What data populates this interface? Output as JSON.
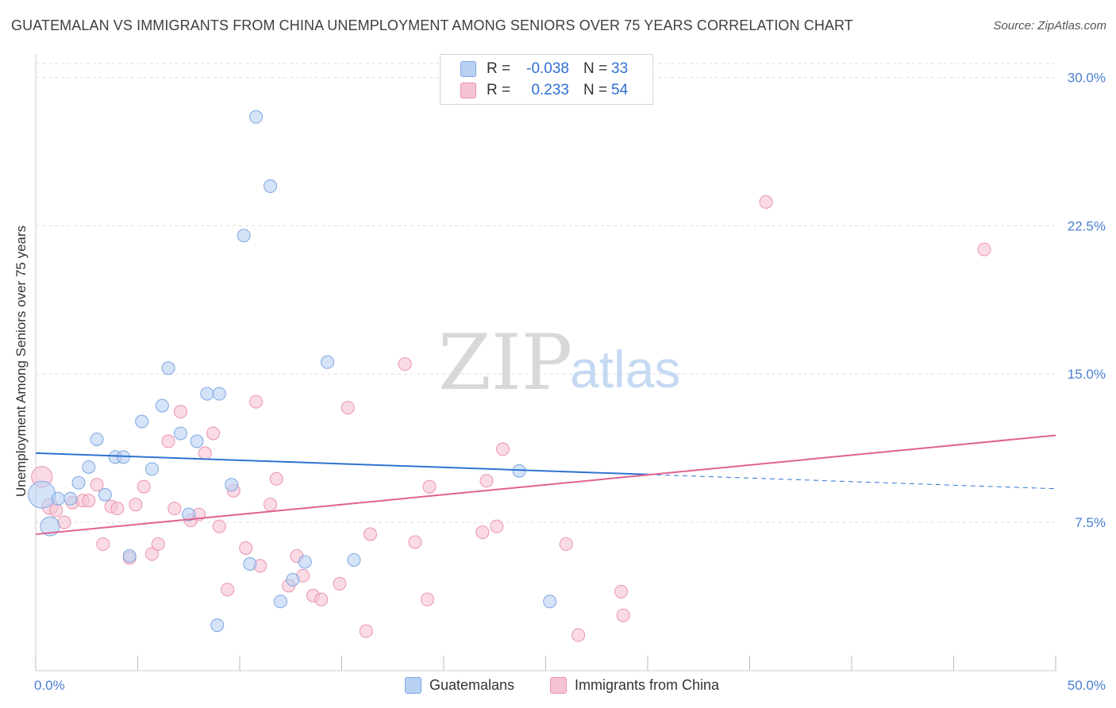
{
  "title": "GUATEMALAN VS IMMIGRANTS FROM CHINA UNEMPLOYMENT AMONG SENIORS OVER 75 YEARS CORRELATION CHART",
  "source": "Source: ZipAtlas.com",
  "watermark": {
    "zip": "ZIP",
    "atlas": "atlas"
  },
  "colors": {
    "blue_fill": "#b8d1f3",
    "blue_stroke": "#7ea6e0",
    "blue_line": "#2f73d0",
    "pink_fill": "#f6c3d3",
    "pink_stroke": "#ea93b0",
    "pink_line": "#e0628f",
    "tick_text": "#4a7fd0",
    "grid": "#dddddd"
  },
  "stats": [
    {
      "r_label": "R =",
      "r_value": "-0.038",
      "n_label": "N =",
      "n_value": "33",
      "color": "#b8d1f3",
      "border": "#7ea6e0"
    },
    {
      "r_label": "R =",
      "r_value": "0.233",
      "n_label": "N =",
      "n_value": "54",
      "color": "#f6c3d3",
      "border": "#ea93b0"
    }
  ],
  "legend": [
    {
      "label": "Guatemalans",
      "color": "#b8d1f3",
      "border": "#7ea6e0"
    },
    {
      "label": "Immigrants from China",
      "color": "#f6c3d3",
      "border": "#ea93b0"
    }
  ],
  "chart_data": {
    "type": "scatter",
    "title": "GUATEMALAN VS IMMIGRANTS FROM CHINA UNEMPLOYMENT AMONG SENIORS OVER 75 YEARS CORRELATION CHART",
    "xlabel": "",
    "ylabel": "Unemployment Among Seniors over 75 years",
    "xlim": [
      0,
      50
    ],
    "ylim": [
      0,
      30.7
    ],
    "x_tick_labels": [
      {
        "value": 0,
        "label": "0.0%"
      },
      {
        "value": 50,
        "label": "50.0%"
      }
    ],
    "y_tick_labels": [
      {
        "value": 7.5,
        "label": "7.5%"
      },
      {
        "value": 15.0,
        "label": "15.0%"
      },
      {
        "value": 22.5,
        "label": "22.5%"
      },
      {
        "value": 30.0,
        "label": "30.0%"
      }
    ],
    "grid": true,
    "series": [
      {
        "name": "Guatemalans",
        "points": [
          {
            "x": 0.3,
            "y": 8.9,
            "size": 17
          },
          {
            "x": 0.7,
            "y": 7.3,
            "size": 12
          },
          {
            "x": 1.1,
            "y": 8.7,
            "size": 8
          },
          {
            "x": 1.7,
            "y": 8.7,
            "size": 8
          },
          {
            "x": 2.1,
            "y": 9.5,
            "size": 8
          },
          {
            "x": 2.6,
            "y": 10.3,
            "size": 8
          },
          {
            "x": 3.0,
            "y": 11.7,
            "size": 8
          },
          {
            "x": 3.4,
            "y": 8.9,
            "size": 8
          },
          {
            "x": 3.9,
            "y": 10.8,
            "size": 8
          },
          {
            "x": 4.3,
            "y": 10.8,
            "size": 8
          },
          {
            "x": 4.6,
            "y": 5.8,
            "size": 8
          },
          {
            "x": 5.2,
            "y": 12.6,
            "size": 8
          },
          {
            "x": 5.7,
            "y": 10.2,
            "size": 8
          },
          {
            "x": 6.2,
            "y": 13.4,
            "size": 8
          },
          {
            "x": 6.5,
            "y": 15.3,
            "size": 8
          },
          {
            "x": 7.1,
            "y": 12.0,
            "size": 8
          },
          {
            "x": 7.5,
            "y": 7.9,
            "size": 8
          },
          {
            "x": 7.9,
            "y": 11.6,
            "size": 8
          },
          {
            "x": 8.4,
            "y": 14.0,
            "size": 8
          },
          {
            "x": 8.9,
            "y": 2.3,
            "size": 8
          },
          {
            "x": 9.0,
            "y": 14.0,
            "size": 8
          },
          {
            "x": 9.6,
            "y": 9.4,
            "size": 8
          },
          {
            "x": 10.2,
            "y": 22.0,
            "size": 8
          },
          {
            "x": 10.5,
            "y": 5.4,
            "size": 8
          },
          {
            "x": 10.8,
            "y": 28.0,
            "size": 8
          },
          {
            "x": 11.5,
            "y": 24.5,
            "size": 8
          },
          {
            "x": 12.0,
            "y": 3.5,
            "size": 8
          },
          {
            "x": 12.6,
            "y": 4.6,
            "size": 8
          },
          {
            "x": 13.2,
            "y": 5.5,
            "size": 8
          },
          {
            "x": 14.3,
            "y": 15.6,
            "size": 8
          },
          {
            "x": 15.6,
            "y": 5.6,
            "size": 8
          },
          {
            "x": 23.7,
            "y": 10.1,
            "size": 8
          },
          {
            "x": 25.2,
            "y": 3.5,
            "size": 8
          }
        ]
      },
      {
        "name": "Immigrants from China",
        "points": [
          {
            "x": 0.3,
            "y": 9.8,
            "size": 13
          },
          {
            "x": 0.7,
            "y": 8.3,
            "size": 10
          },
          {
            "x": 1.0,
            "y": 8.1,
            "size": 8
          },
          {
            "x": 1.4,
            "y": 7.5,
            "size": 8
          },
          {
            "x": 1.8,
            "y": 8.5,
            "size": 8
          },
          {
            "x": 2.3,
            "y": 8.6,
            "size": 8
          },
          {
            "x": 2.6,
            "y": 8.6,
            "size": 8
          },
          {
            "x": 3.0,
            "y": 9.4,
            "size": 8
          },
          {
            "x": 3.3,
            "y": 6.4,
            "size": 8
          },
          {
            "x": 3.7,
            "y": 8.3,
            "size": 8
          },
          {
            "x": 4.0,
            "y": 8.2,
            "size": 8
          },
          {
            "x": 4.6,
            "y": 5.7,
            "size": 8
          },
          {
            "x": 4.9,
            "y": 8.4,
            "size": 8
          },
          {
            "x": 5.3,
            "y": 9.3,
            "size": 8
          },
          {
            "x": 5.7,
            "y": 5.9,
            "size": 8
          },
          {
            "x": 6.0,
            "y": 6.4,
            "size": 8
          },
          {
            "x": 6.5,
            "y": 11.6,
            "size": 8
          },
          {
            "x": 6.8,
            "y": 8.2,
            "size": 8
          },
          {
            "x": 7.1,
            "y": 13.1,
            "size": 8
          },
          {
            "x": 7.6,
            "y": 7.6,
            "size": 8
          },
          {
            "x": 8.0,
            "y": 7.9,
            "size": 8
          },
          {
            "x": 8.3,
            "y": 11.0,
            "size": 8
          },
          {
            "x": 8.7,
            "y": 12.0,
            "size": 8
          },
          {
            "x": 9.0,
            "y": 7.3,
            "size": 8
          },
          {
            "x": 9.4,
            "y": 4.1,
            "size": 8
          },
          {
            "x": 9.7,
            "y": 9.1,
            "size": 8
          },
          {
            "x": 10.3,
            "y": 6.2,
            "size": 8
          },
          {
            "x": 10.8,
            "y": 13.6,
            "size": 8
          },
          {
            "x": 11.0,
            "y": 5.3,
            "size": 8
          },
          {
            "x": 11.5,
            "y": 8.4,
            "size": 8
          },
          {
            "x": 11.8,
            "y": 9.7,
            "size": 8
          },
          {
            "x": 12.4,
            "y": 4.3,
            "size": 8
          },
          {
            "x": 12.8,
            "y": 5.8,
            "size": 8
          },
          {
            "x": 13.1,
            "y": 4.8,
            "size": 8
          },
          {
            "x": 13.6,
            "y": 3.8,
            "size": 8
          },
          {
            "x": 14.0,
            "y": 3.6,
            "size": 8
          },
          {
            "x": 14.9,
            "y": 4.4,
            "size": 8
          },
          {
            "x": 15.3,
            "y": 13.3,
            "size": 8
          },
          {
            "x": 16.2,
            "y": 2.0,
            "size": 8
          },
          {
            "x": 16.4,
            "y": 6.9,
            "size": 8
          },
          {
            "x": 18.1,
            "y": 15.5,
            "size": 8
          },
          {
            "x": 18.6,
            "y": 6.5,
            "size": 8
          },
          {
            "x": 19.2,
            "y": 3.6,
            "size": 8
          },
          {
            "x": 19.3,
            "y": 9.3,
            "size": 8
          },
          {
            "x": 21.9,
            "y": 7.0,
            "size": 8
          },
          {
            "x": 22.1,
            "y": 9.6,
            "size": 8
          },
          {
            "x": 22.6,
            "y": 7.3,
            "size": 8
          },
          {
            "x": 22.9,
            "y": 11.2,
            "size": 8
          },
          {
            "x": 26.0,
            "y": 6.4,
            "size": 8
          },
          {
            "x": 26.6,
            "y": 1.8,
            "size": 8
          },
          {
            "x": 28.7,
            "y": 4.0,
            "size": 8
          },
          {
            "x": 28.8,
            "y": 2.8,
            "size": 8
          },
          {
            "x": 35.8,
            "y": 23.7,
            "size": 8
          },
          {
            "x": 46.5,
            "y": 21.3,
            "size": 8
          }
        ]
      }
    ],
    "trendlines": [
      {
        "series": "Guatemalans",
        "from": [
          0,
          11.0
        ],
        "solid_to": 30.0,
        "to": [
          50,
          9.2
        ],
        "style": "solid then dashed"
      },
      {
        "series": "Immigrants from China",
        "from": [
          0,
          6.9
        ],
        "to": [
          50,
          11.9
        ],
        "style": "solid"
      }
    ]
  }
}
